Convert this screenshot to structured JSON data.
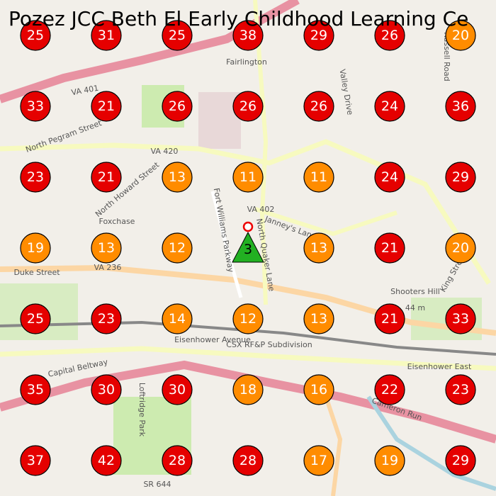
{
  "title": "Pozez JCC Beth El Early Childhood Learning Ce",
  "markers": [
    [
      {
        "value": 25,
        "color": "#e50000"
      },
      {
        "value": 31,
        "color": "#e50000"
      },
      {
        "value": 25,
        "color": "#e50000"
      },
      {
        "value": 38,
        "color": "#e50000"
      },
      {
        "value": 29,
        "color": "#e50000"
      },
      {
        "value": 26,
        "color": "#e50000"
      },
      {
        "value": 20,
        "color": "#ff8c00"
      }
    ],
    [
      {
        "value": 33,
        "color": "#e50000"
      },
      {
        "value": 21,
        "color": "#e50000"
      },
      {
        "value": 26,
        "color": "#e50000"
      },
      {
        "value": 26,
        "color": "#e50000"
      },
      {
        "value": 26,
        "color": "#e50000"
      },
      {
        "value": 24,
        "color": "#e50000"
      },
      {
        "value": 36,
        "color": "#e50000"
      }
    ],
    [
      {
        "value": 23,
        "color": "#e50000"
      },
      {
        "value": 21,
        "color": "#e50000"
      },
      {
        "value": 13,
        "color": "#ff8c00"
      },
      {
        "value": 11,
        "color": "#ff8c00"
      },
      {
        "value": 11,
        "color": "#ff8c00"
      },
      {
        "value": 24,
        "color": "#e50000"
      },
      {
        "value": 29,
        "color": "#e50000"
      }
    ],
    [
      {
        "value": 19,
        "color": "#ff8c00"
      },
      {
        "value": 13,
        "color": "#ff8c00"
      },
      {
        "value": 12,
        "color": "#ff8c00"
      },
      {
        "value": 3,
        "color": "#22b022",
        "shape": "triangle"
      },
      {
        "value": 13,
        "color": "#ff8c00"
      },
      {
        "value": 21,
        "color": "#e50000"
      },
      {
        "value": 20,
        "color": "#ff8c00"
      }
    ],
    [
      {
        "value": 25,
        "color": "#e50000"
      },
      {
        "value": 23,
        "color": "#e50000"
      },
      {
        "value": 14,
        "color": "#ff8c00"
      },
      {
        "value": 12,
        "color": "#ff8c00"
      },
      {
        "value": 13,
        "color": "#ff8c00"
      },
      {
        "value": 21,
        "color": "#e50000"
      },
      {
        "value": 33,
        "color": "#e50000"
      }
    ],
    [
      {
        "value": 35,
        "color": "#e50000"
      },
      {
        "value": 30,
        "color": "#e50000"
      },
      {
        "value": 30,
        "color": "#e50000"
      },
      {
        "value": 18,
        "color": "#ff8c00"
      },
      {
        "value": 16,
        "color": "#ff8c00"
      },
      {
        "value": 22,
        "color": "#e50000"
      },
      {
        "value": 23,
        "color": "#e50000"
      }
    ],
    [
      {
        "value": 37,
        "color": "#e50000"
      },
      {
        "value": 42,
        "color": "#e50000"
      },
      {
        "value": 28,
        "color": "#e50000"
      },
      {
        "value": 28,
        "color": "#e50000"
      },
      {
        "value": 17,
        "color": "#ff8c00"
      },
      {
        "value": 19,
        "color": "#ff8c00"
      },
      {
        "value": 29,
        "color": "#e50000"
      }
    ]
  ],
  "labels": [
    "Fairlington",
    "VA 401",
    "VA 420",
    "VA 402",
    "VA 236",
    "Duke Street",
    "King Street",
    "Eisenhower Avenue",
    "Capital Beltway",
    "Loftridge Park",
    "Shooters Hill",
    "44 m",
    "SR 644",
    "Foxchase",
    "North Quaker Lane",
    "Janney's Lane",
    "Fort Williams Parkway",
    "Eisenhower East",
    "Cameron Run",
    "Valley Drive",
    "North Pegram Street",
    "North Howard Street",
    "Russell Road",
    "CSX RF&P Subdivision"
  ]
}
